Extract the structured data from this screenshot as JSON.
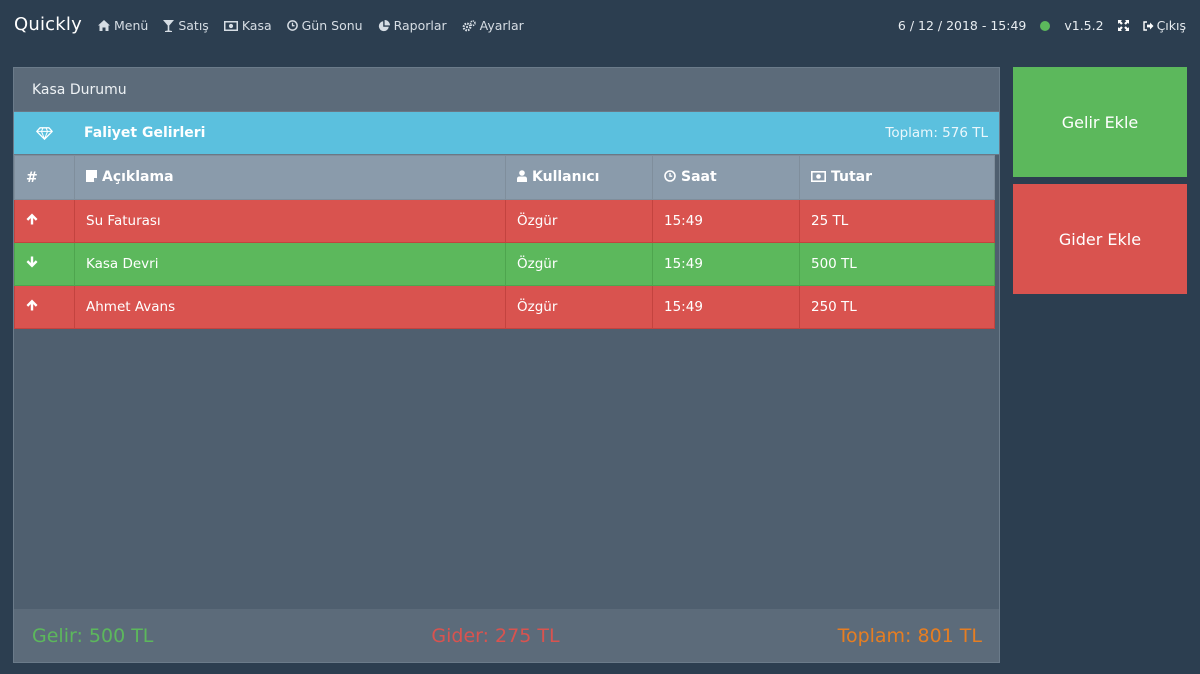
{
  "app": {
    "title": "Quickly"
  },
  "nav": {
    "items": [
      {
        "label": "Menü",
        "icon": "home-icon"
      },
      {
        "label": "Satış",
        "icon": "cocktail-icon"
      },
      {
        "label": "Kasa",
        "icon": "money-icon"
      },
      {
        "label": "Gün Sonu",
        "icon": "clock-icon"
      },
      {
        "label": "Raporlar",
        "icon": "pie-chart-icon"
      },
      {
        "label": "Ayarlar",
        "icon": "cogs-icon"
      }
    ]
  },
  "status": {
    "datetime": "6 / 12 / 2018 - 15:49",
    "online_color": "#5cb85c",
    "version": "v1.5.2",
    "logout_label": "Çıkış"
  },
  "panel": {
    "title": "Kasa Durumu",
    "section": {
      "title": "Faliyet Gelirleri",
      "total": "Toplam: 576 TL"
    },
    "columns": {
      "index": "#",
      "description": "Açıklama",
      "user": "Kullanıcı",
      "time": "Saat",
      "amount": "Tutar"
    },
    "rows": [
      {
        "direction": "up",
        "description": "Su Faturası",
        "user": "Özgür",
        "time": "15:49",
        "amount": "25 TL"
      },
      {
        "direction": "down",
        "description": "Kasa Devri",
        "user": "Özgür",
        "time": "15:49",
        "amount": "500 TL"
      },
      {
        "direction": "up",
        "description": "Ahmet Avans",
        "user": "Özgür",
        "time": "15:49",
        "amount": "250 TL"
      }
    ],
    "footer": {
      "income": "Gelir: 500 TL",
      "expense": "Gider: 275 TL",
      "total": "Toplam: 801 TL"
    }
  },
  "actions": {
    "add_income": "Gelir Ekle",
    "add_expense": "Gider Ekle"
  },
  "colors": {
    "background": "#2c3e50",
    "info": "#5bc0de",
    "success": "#5cb85c",
    "danger": "#d9534f",
    "warning": "#e67e22"
  }
}
